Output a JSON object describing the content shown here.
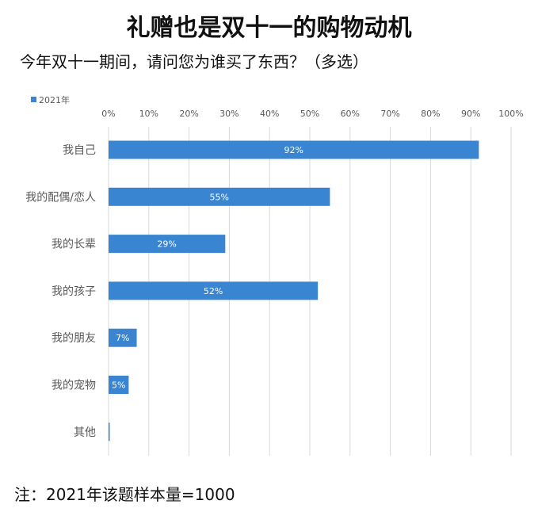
{
  "chart_data": {
    "type": "bar",
    "orientation": "horizontal",
    "title": "礼赠也是双十一的购物动机",
    "subtitle": "今年双十一期间，请问您为谁买了东西？（多选）",
    "categories": [
      "我自己",
      "我的配偶/恋人",
      "我的长辈",
      "我的孩子",
      "我的朋友",
      "我的宠物",
      "其他"
    ],
    "series": [
      {
        "name": "2021年",
        "values": [
          92,
          55,
          29,
          52,
          7,
          5,
          0.3
        ],
        "labels": [
          "92%",
          "55%",
          "29%",
          "52%",
          "7%",
          "5%",
          ""
        ]
      }
    ],
    "xlim": [
      0,
      100
    ],
    "xticks": [
      "0%",
      "10%",
      "20%",
      "30%",
      "40%",
      "50%",
      "60%",
      "70%",
      "80%",
      "90%",
      "100%"
    ],
    "legend": "top-left",
    "grid": true,
    "color": "#3a85d1",
    "note": "注：2021年该题样本量=1000"
  }
}
